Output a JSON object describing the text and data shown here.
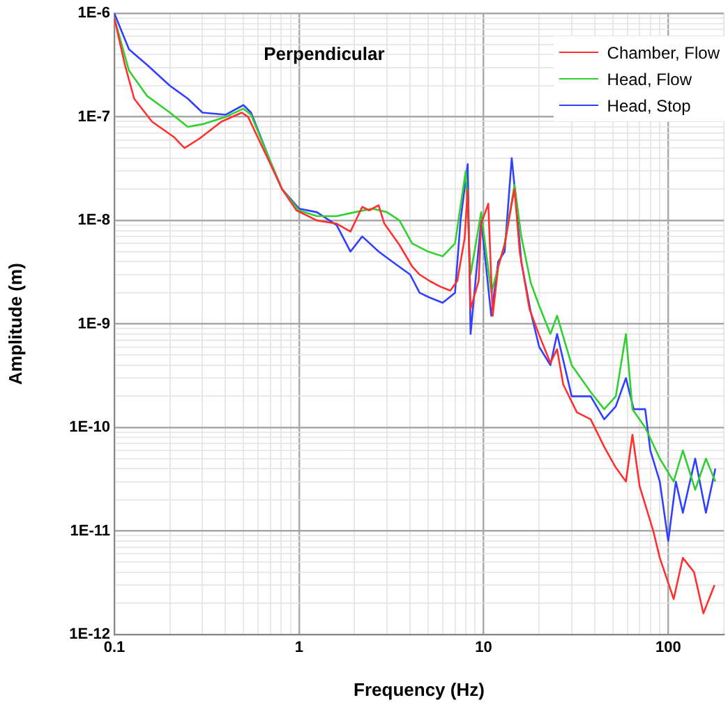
{
  "chart_data": {
    "type": "line",
    "title": "Perpendicular",
    "xlabel": "Frequency (Hz)",
    "ylabel": "Amplitude (m)",
    "log": "xy",
    "grid": true,
    "legend": "top right",
    "line_style": "solid",
    "marker": "none",
    "xlim": [
      0.1,
      200
    ],
    "ylim": [
      1e-12,
      1e-06
    ],
    "xticks": [
      {
        "value": 0.1,
        "label": "0.1"
      },
      {
        "value": 0.2,
        "label": null
      },
      {
        "value": 0.3,
        "label": null
      },
      {
        "value": 0.4,
        "label": null
      },
      {
        "value": 0.5,
        "label": null
      },
      {
        "value": 0.6,
        "label": null
      },
      {
        "value": 0.7,
        "label": null
      },
      {
        "value": 0.8,
        "label": null
      },
      {
        "value": 0.9,
        "label": null
      },
      1,
      {
        "value": 2,
        "label": null
      },
      {
        "value": 3,
        "label": null
      },
      {
        "value": 4,
        "label": null
      },
      {
        "value": 5,
        "label": null
      },
      {
        "value": 6,
        "label": null
      },
      {
        "value": 7,
        "label": null
      },
      {
        "value": 8,
        "label": null
      },
      {
        "value": 9,
        "label": null
      },
      10,
      {
        "value": 20,
        "label": null
      },
      {
        "value": 30,
        "label": null
      },
      {
        "value": 40,
        "label": null
      },
      {
        "value": 50,
        "label": null
      },
      {
        "value": 60,
        "label": null
      },
      {
        "value": 70,
        "label": null
      },
      {
        "value": 80,
        "label": null
      },
      {
        "value": 90,
        "label": null
      },
      100,
      {
        "value": 200,
        "label": null
      }
    ],
    "yticks": [
      {
        "value": 1e-12,
        "label": "1E-12"
      },
      {
        "value": 2e-12,
        "label": null
      },
      {
        "value": 3e-12,
        "label": null
      },
      {
        "value": 4e-12,
        "label": null
      },
      {
        "value": 5e-12,
        "label": null
      },
      {
        "value": 6e-12,
        "label": null
      },
      {
        "value": 7e-12,
        "label": null
      },
      {
        "value": 8e-12,
        "label": null
      },
      {
        "value": 9e-12,
        "label": null
      },
      {
        "value": 1e-11,
        "label": "1E-11"
      },
      {
        "value": 2e-11,
        "label": null
      },
      {
        "value": 3e-11,
        "label": null
      },
      {
        "value": 4e-11,
        "label": null
      },
      {
        "value": 5e-11,
        "label": null
      },
      {
        "value": 6e-11,
        "label": null
      },
      {
        "value": 7e-11,
        "label": null
      },
      {
        "value": 8e-11,
        "label": null
      },
      {
        "value": 9e-11,
        "label": null
      },
      {
        "value": 1e-10,
        "label": "1E-10"
      },
      {
        "value": 2e-10,
        "label": null
      },
      {
        "value": 3e-10,
        "label": null
      },
      {
        "value": 4e-10,
        "label": null
      },
      {
        "value": 5e-10,
        "label": null
      },
      {
        "value": 6e-10,
        "label": null
      },
      {
        "value": 7e-10,
        "label": null
      },
      {
        "value": 8e-10,
        "label": null
      },
      {
        "value": 9e-10,
        "label": null
      },
      {
        "value": 1e-09,
        "label": "1E-9"
      },
      {
        "value": 2e-09,
        "label": null
      },
      {
        "value": 3e-09,
        "label": null
      },
      {
        "value": 4e-09,
        "label": null
      },
      {
        "value": 5e-09,
        "label": null
      },
      {
        "value": 6e-09,
        "label": null
      },
      {
        "value": 7e-09,
        "label": null
      },
      {
        "value": 8e-09,
        "label": null
      },
      {
        "value": 9e-09,
        "label": null
      },
      {
        "value": 1e-08,
        "label": "1E-8"
      },
      {
        "value": 2e-08,
        "label": null
      },
      {
        "value": 3e-08,
        "label": null
      },
      {
        "value": 4e-08,
        "label": null
      },
      {
        "value": 5e-08,
        "label": null
      },
      {
        "value": 6e-08,
        "label": null
      },
      {
        "value": 7e-08,
        "label": null
      },
      {
        "value": 8e-08,
        "label": null
      },
      {
        "value": 9e-08,
        "label": null
      },
      {
        "value": 1e-07,
        "label": "1E-7"
      },
      {
        "value": 2e-07,
        "label": null
      },
      {
        "value": 3e-07,
        "label": null
      },
      {
        "value": 4e-07,
        "label": null
      },
      {
        "value": 5e-07,
        "label": null
      },
      {
        "value": 6e-07,
        "label": null
      },
      {
        "value": 7e-07,
        "label": null
      },
      {
        "value": 8e-07,
        "label": null
      },
      {
        "value": 9e-07,
        "label": null
      },
      {
        "value": 1e-06,
        "label": "1E-6"
      }
    ],
    "series": [
      {
        "name": "Chamber, Flow",
        "color": "#ff3030",
        "x": [
          0.1,
          0.114,
          0.128,
          0.16,
          0.21,
          0.24,
          0.29,
          0.38,
          0.49,
          0.53,
          0.69,
          0.81,
          0.97,
          1.25,
          1.6,
          1.9,
          2.2,
          2.4,
          2.7,
          2.9,
          3.5,
          4.1,
          4.5,
          5.1,
          5.8,
          6.6,
          7.2,
          7.9,
          8.2,
          8.5,
          9.4,
          9.7,
          10.6,
          11.2,
          12,
          13,
          14.2,
          14.7,
          15.7,
          17.7,
          20,
          23,
          25,
          27,
          32,
          38,
          45,
          52,
          59,
          64,
          70,
          83,
          90,
          107,
          120,
          138,
          155,
          178
        ],
        "values": [
          9e-07,
          3.2e-07,
          1.5e-07,
          9e-08,
          6.4e-08,
          5e-08,
          6.2e-08,
          9e-08,
          1.1e-07,
          1e-07,
          3.7e-08,
          2e-08,
          1.25e-08,
          1e-08,
          9.3e-09,
          7.8e-09,
          1.35e-08,
          1.25e-08,
          1.4e-08,
          9.3e-09,
          5.8e-09,
          3.6e-09,
          3e-09,
          2.6e-09,
          2.3e-09,
          2.1e-09,
          2.6e-09,
          6.8e-09,
          2e-08,
          1.4e-09,
          2.6e-09,
          9.3e-09,
          1.45e-08,
          1.2e-09,
          3.6e-09,
          5.8e-09,
          1.45e-08,
          2e-08,
          4.9e-09,
          1.4e-09,
          7.8e-10,
          4.2e-10,
          5.7e-10,
          2.6e-10,
          1.4e-10,
          1.2e-10,
          6.5e-11,
          4.1e-11,
          3e-11,
          8.5e-11,
          2.7e-11,
          1e-11,
          5.5e-12,
          2.2e-12,
          5.5e-12,
          4e-12,
          1.6e-12,
          3e-12
        ]
      },
      {
        "name": "Head, Flow",
        "color": "#30d030",
        "x": [
          0.1,
          0.12,
          0.15,
          0.2,
          0.25,
          0.3,
          0.4,
          0.5,
          0.55,
          0.7,
          0.81,
          1,
          1.25,
          1.6,
          2,
          2.5,
          3,
          3.5,
          4.1,
          5,
          6,
          7,
          8,
          8.5,
          9.7,
          11,
          13,
          14.7,
          16,
          18,
          20,
          23,
          25,
          30,
          38,
          45,
          52,
          59,
          64,
          75,
          90,
          107,
          120,
          140,
          160,
          180
        ],
        "values": [
          9e-07,
          2.8e-07,
          1.6e-07,
          1.1e-07,
          8e-08,
          8.5e-08,
          1e-07,
          1.2e-07,
          1.05e-07,
          3.7e-08,
          2e-08,
          1.25e-08,
          1.1e-08,
          1.1e-08,
          1.2e-08,
          1.3e-08,
          1.2e-08,
          1e-08,
          6e-09,
          5e-09,
          4.5e-09,
          6e-09,
          3e-08,
          3e-09,
          1.2e-08,
          2e-09,
          6e-09,
          2.2e-08,
          7e-09,
          2.5e-09,
          1.5e-09,
          8e-10,
          1.2e-09,
          4e-10,
          2.2e-10,
          1.5e-10,
          2e-10,
          8e-10,
          1.5e-10,
          1e-10,
          5e-11,
          3e-11,
          6e-11,
          2.5e-11,
          5e-11,
          3e-11
        ]
      },
      {
        "name": "Head, Stop",
        "color": "#3040ff",
        "x": [
          0.1,
          0.12,
          0.15,
          0.2,
          0.25,
          0.3,
          0.4,
          0.5,
          0.55,
          0.7,
          0.81,
          1,
          1.25,
          1.6,
          1.9,
          2.2,
          2.7,
          3.2,
          4,
          4.5,
          5.1,
          6,
          7,
          7.5,
          8.2,
          8.5,
          9.7,
          11,
          12,
          13,
          14.2,
          15,
          16,
          18,
          20,
          23,
          25,
          30,
          38,
          45,
          52,
          59,
          65,
          75,
          80,
          90,
          100,
          110,
          120,
          140,
          160,
          180
        ],
        "values": [
          1e-06,
          4.5e-07,
          3.2e-07,
          2e-07,
          1.5e-07,
          1.1e-07,
          1.05e-07,
          1.3e-07,
          1.1e-07,
          3.7e-08,
          2e-08,
          1.3e-08,
          1.2e-08,
          9e-09,
          5e-09,
          7e-09,
          5e-09,
          4e-09,
          3e-09,
          2e-09,
          1.8e-09,
          1.6e-09,
          2e-09,
          1e-08,
          3.5e-08,
          8e-10,
          1e-08,
          1.2e-09,
          4e-09,
          5e-09,
          4e-08,
          1.5e-08,
          4e-09,
          1.3e-09,
          6e-10,
          4e-10,
          8e-10,
          2e-10,
          2e-10,
          1.2e-10,
          1.6e-10,
          3e-10,
          1.5e-10,
          1.5e-10,
          6e-11,
          3e-11,
          8e-12,
          3e-11,
          1.5e-11,
          5e-11,
          1.5e-11,
          4e-11
        ]
      }
    ]
  }
}
